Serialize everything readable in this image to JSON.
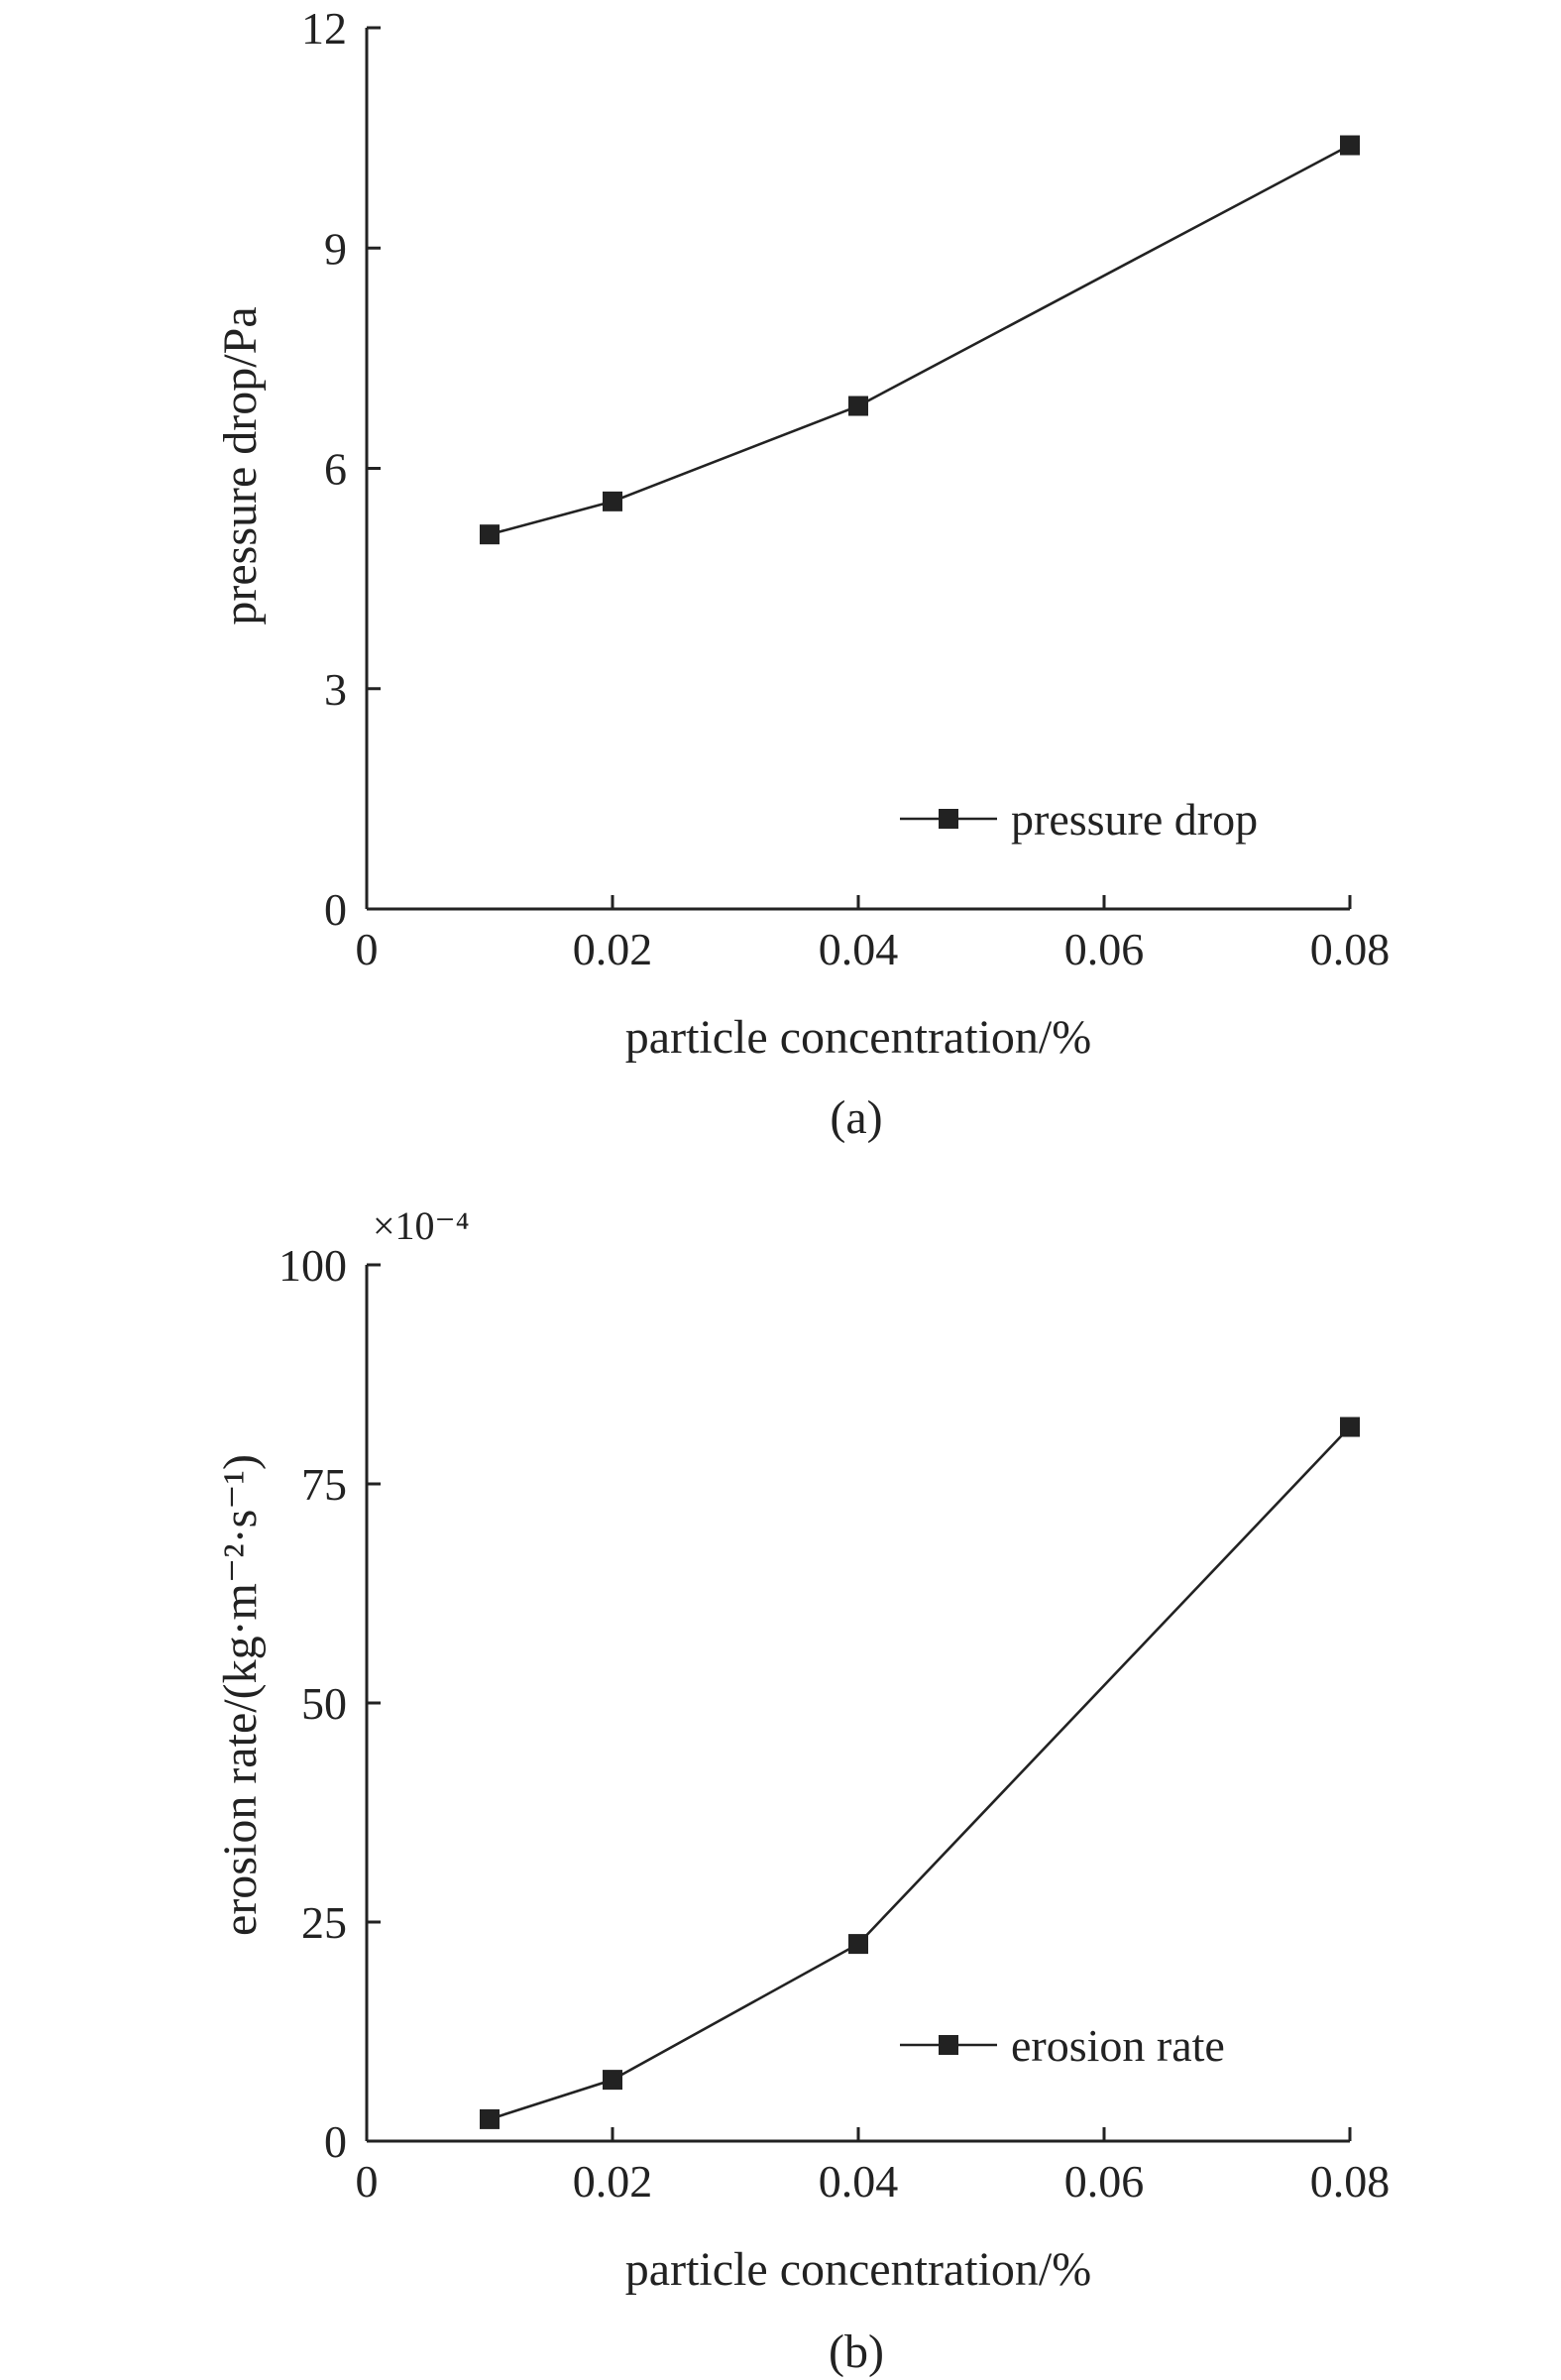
{
  "figure": {
    "panel_a_label": "(a)",
    "panel_b_label": "(b)"
  },
  "chart_data": [
    {
      "type": "line",
      "panel": "(a)",
      "xlabel": "particle concentration/%",
      "ylabel": "pressure drop/Pa",
      "x_ticks": [
        "0",
        "0.02",
        "0.04",
        "0.06",
        "0.08"
      ],
      "y_ticks": [
        "0",
        "3",
        "6",
        "9",
        "12"
      ],
      "xlim": [
        0,
        0.08
      ],
      "ylim": [
        0,
        12
      ],
      "grid": false,
      "legend_position": "lower-right",
      "series": [
        {
          "name": "pressure drop",
          "x": [
            0.01,
            0.02,
            0.04,
            0.08
          ],
          "y": [
            5.1,
            5.55,
            6.85,
            10.4
          ],
          "marker": "square",
          "color": "#222222"
        }
      ]
    },
    {
      "type": "line",
      "panel": "(b)",
      "xlabel": "particle concentration/%",
      "ylabel": "erosion rate/(kg·m⁻²·s⁻¹)",
      "y_multiplier": "×10⁻⁴",
      "x_ticks": [
        "0",
        "0.02",
        "0.04",
        "0.06",
        "0.08"
      ],
      "y_ticks": [
        "0",
        "25",
        "50",
        "75",
        "100"
      ],
      "xlim": [
        0,
        0.08
      ],
      "ylim": [
        0,
        100
      ],
      "grid": false,
      "legend_position": "lower-right",
      "series": [
        {
          "name": "erosion rate",
          "x": [
            0.01,
            0.02,
            0.04,
            0.08
          ],
          "y": [
            2.5,
            7,
            22.5,
            81.5
          ],
          "marker": "square",
          "color": "#222222"
        }
      ]
    }
  ]
}
